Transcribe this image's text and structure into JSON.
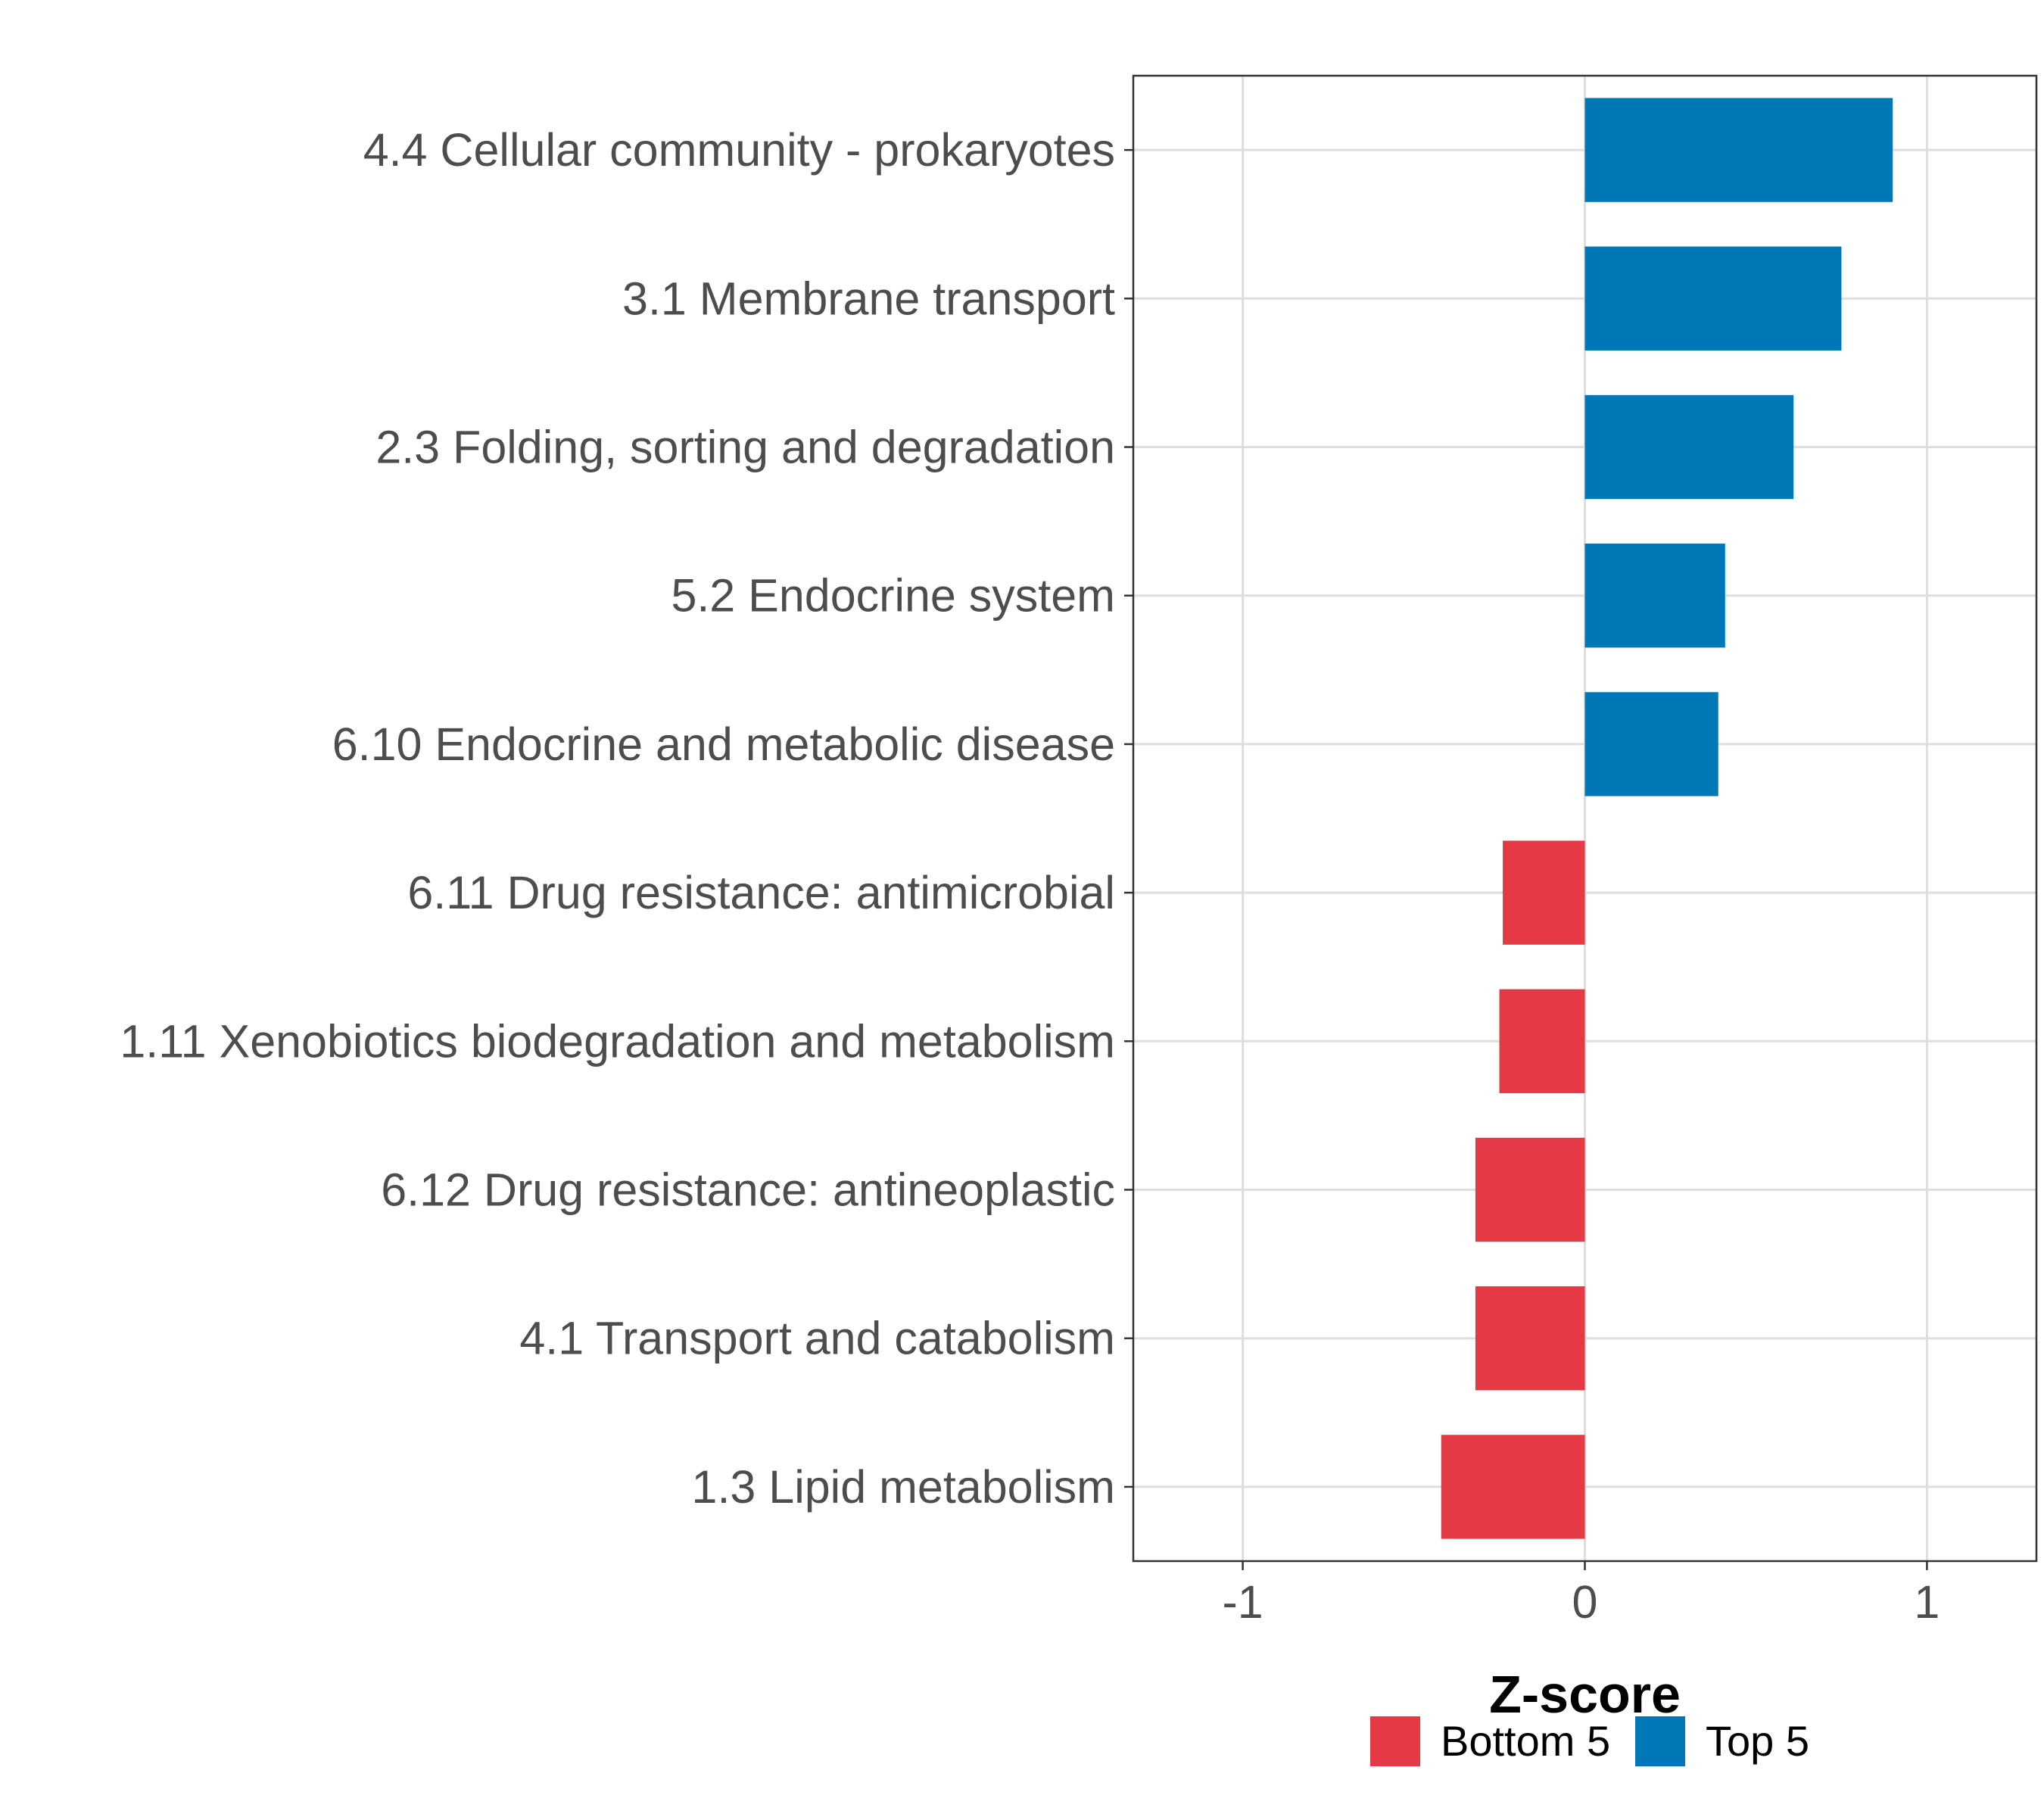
{
  "chart_data": {
    "type": "bar",
    "orientation": "horizontal",
    "title": "",
    "xlabel": "Z-score",
    "ylabel": "",
    "xlim": [
      -1.32,
      1.32
    ],
    "xticks": [
      -1,
      0,
      1
    ],
    "xtick_labels": [
      "-1",
      "0",
      "1"
    ],
    "grid": true,
    "legend_position": "bottom",
    "categories": [
      "4.4 Cellular community - prokaryotes",
      "3.1 Membrane transport",
      "2.3 Folding, sorting and degradation",
      "5.2 Endocrine system",
      "6.10 Endocrine and metabolic disease",
      "6.11 Drug resistance: antimicrobial",
      "1.11 Xenobiotics biodegradation and metabolism",
      "6.12 Drug resistance: antineoplastic",
      "4.1 Transport and catabolism",
      "1.3 Lipid metabolism"
    ],
    "values": [
      0.9,
      0.75,
      0.61,
      0.41,
      0.39,
      -0.24,
      -0.25,
      -0.32,
      -0.32,
      -0.42
    ],
    "groups": [
      "Top 5",
      "Top 5",
      "Top 5",
      "Top 5",
      "Top 5",
      "Bottom 5",
      "Bottom 5",
      "Bottom 5",
      "Bottom 5",
      "Bottom 5"
    ],
    "series": [
      {
        "name": "Bottom 5",
        "color": "#e63946"
      },
      {
        "name": "Top 5",
        "color": "#0077b6"
      }
    ]
  }
}
